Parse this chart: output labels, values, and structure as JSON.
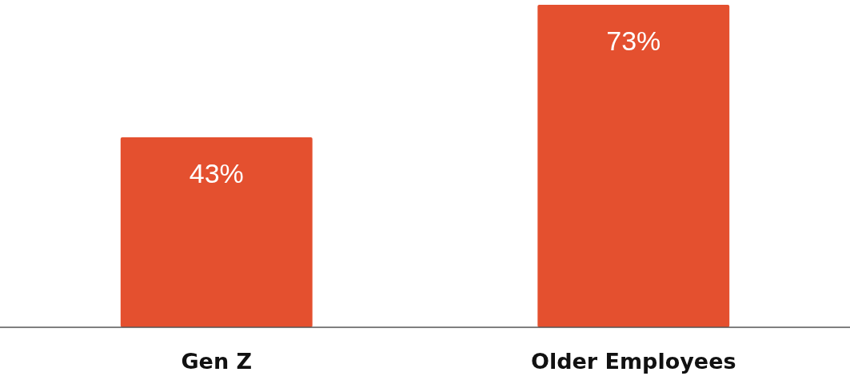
{
  "chart_data": {
    "type": "bar",
    "categories": [
      "Gen Z",
      "Older Employees"
    ],
    "values": [
      43,
      73
    ],
    "color": "#e4502f",
    "value_labels": [
      "43%",
      "73%"
    ]
  }
}
